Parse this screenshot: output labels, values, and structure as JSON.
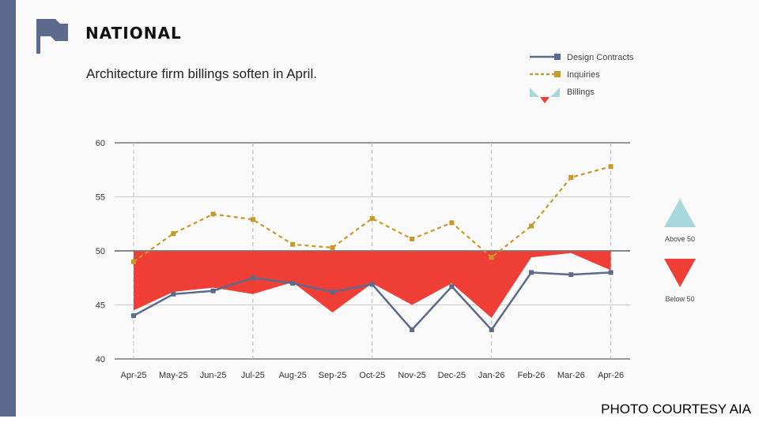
{
  "header": {
    "section_title": "NATIONAL",
    "subtitle": "Architecture firm billings soften in April."
  },
  "credit": "PHOTO COURTESY AIA",
  "icons": {
    "section_icon": "flag-icon"
  },
  "colors": {
    "design_contracts": "#5c6a8c",
    "inquiries": "#c59a2a",
    "billings_above": "#a8d8dc",
    "billings_below": "#ef3e36",
    "sidebar": "#5c6a8c"
  },
  "legend": {
    "design_contracts": "Design Contracts",
    "inquiries": "Inquiries",
    "billings": "Billings"
  },
  "key": {
    "above": "Above 50",
    "below": "Below 50"
  },
  "chart_data": {
    "type": "line",
    "categories": [
      "Apr-25",
      "May-25",
      "Jun-25",
      "Jul-25",
      "Aug-25",
      "Sep-25",
      "Oct-25",
      "Nov-25",
      "Dec-25",
      "Jan-26",
      "Feb-26",
      "Mar-26",
      "Apr-26"
    ],
    "yticks": [
      40,
      45,
      50,
      55,
      60
    ],
    "ylim": [
      40,
      60
    ],
    "baseline": 50,
    "grid": true,
    "legend_position": "top-right",
    "series": [
      {
        "name": "Billings",
        "type": "area-vs-baseline",
        "values": [
          44.5,
          46.2,
          46.6,
          46.0,
          47.1,
          44.3,
          47.0,
          45.0,
          47.0,
          43.8,
          49.4,
          49.8,
          48.2
        ]
      },
      {
        "name": "Inquiries",
        "type": "dashed-line",
        "values": [
          49.0,
          51.6,
          53.4,
          52.9,
          50.6,
          50.3,
          53.0,
          51.1,
          52.6,
          49.4,
          52.3,
          56.8,
          57.8
        ]
      },
      {
        "name": "Design Contracts",
        "type": "line",
        "values": [
          44.0,
          46.0,
          46.3,
          47.5,
          47.0,
          46.2,
          46.9,
          42.7,
          46.7,
          42.7,
          48.0,
          47.8,
          48.0
        ]
      }
    ]
  }
}
